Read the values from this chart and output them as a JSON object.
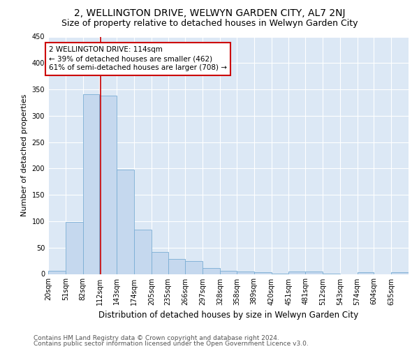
{
  "title": "2, WELLINGTON DRIVE, WELWYN GARDEN CITY, AL7 2NJ",
  "subtitle": "Size of property relative to detached houses in Welwyn Garden City",
  "xlabel": "Distribution of detached houses by size in Welwyn Garden City",
  "ylabel": "Number of detached properties",
  "bar_edges": [
    20,
    51,
    82,
    112,
    143,
    174,
    205,
    235,
    266,
    297,
    328,
    358,
    389,
    420,
    451,
    481,
    512,
    543,
    574,
    604,
    635
  ],
  "bar_heights": [
    6,
    98,
    341,
    338,
    198,
    84,
    42,
    28,
    25,
    11,
    6,
    5,
    3,
    1,
    5,
    5,
    1,
    0,
    3,
    0,
    3
  ],
  "bar_color": "#c5d8ee",
  "bar_edgecolor": "#7aadd4",
  "vline_x": 114,
  "vline_color": "#cc0000",
  "annotation_line1": "2 WELLINGTON DRIVE: 114sqm",
  "annotation_line2": "← 39% of detached houses are smaller (462)",
  "annotation_line3": "61% of semi-detached houses are larger (708) →",
  "annotation_box_color": "#ffffff",
  "annotation_box_edgecolor": "#cc0000",
  "ylim": [
    0,
    450
  ],
  "yticks": [
    0,
    50,
    100,
    150,
    200,
    250,
    300,
    350,
    400,
    450
  ],
  "bg_color": "#dce8f5",
  "plot_bg_color": "#dce8f5",
  "fig_bg_color": "#ffffff",
  "grid_color": "#ffffff",
  "footer_line1": "Contains HM Land Registry data © Crown copyright and database right 2024.",
  "footer_line2": "Contains public sector information licensed under the Open Government Licence v3.0.",
  "title_fontsize": 10,
  "subtitle_fontsize": 9,
  "annotation_fontsize": 7.5,
  "tick_fontsize": 7,
  "xlabel_fontsize": 8.5,
  "ylabel_fontsize": 8,
  "footer_fontsize": 6.5
}
